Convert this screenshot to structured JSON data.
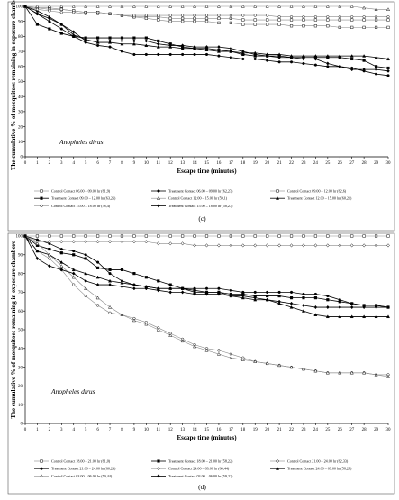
{
  "chart_data": [
    {
      "type": "line",
      "caption": "(c)",
      "annotation": "Anopheles dirus",
      "xlabel": "Escape time (minutes)",
      "ylabel": "The cumulative % of mosquitoes remaining in exposure chambers",
      "xlim": [
        0,
        30
      ],
      "ylim": [
        0,
        100
      ],
      "x_ticks": [
        0,
        1,
        2,
        3,
        4,
        5,
        6,
        7,
        8,
        9,
        10,
        11,
        12,
        13,
        14,
        15,
        16,
        17,
        18,
        19,
        20,
        21,
        22,
        23,
        24,
        25,
        26,
        27,
        28,
        29,
        30
      ],
      "y_ticks": [
        0,
        10,
        20,
        30,
        40,
        50,
        60,
        70,
        80,
        90,
        100
      ],
      "grid": false,
      "legend_position": "bottom",
      "series": [
        {
          "name": "Control Contact 06.00 – 09.00 hr (61,9)",
          "style": "control",
          "marker": "square",
          "values": [
            100,
            99,
            99,
            98,
            97,
            96,
            96,
            95,
            94,
            93,
            93,
            93,
            92,
            92,
            92,
            92,
            92,
            92,
            91,
            91,
            91,
            91,
            91,
            91,
            91,
            91,
            91,
            91,
            91,
            91,
            91
          ]
        },
        {
          "name": "Treatment Contact 06.00 – 09.00 hr (62,27)",
          "style": "treatment",
          "marker": "circle",
          "values": [
            100,
            95,
            90,
            85,
            80,
            76,
            74,
            73,
            70,
            68,
            68,
            68,
            68,
            68,
            68,
            68,
            67,
            66,
            65,
            65,
            64,
            63,
            63,
            62,
            61,
            60,
            60,
            59,
            57,
            55,
            54
          ]
        },
        {
          "name": "Control Contact 09.00 – 12.00 hr (62,6)",
          "style": "control",
          "marker": "square",
          "values": [
            100,
            99,
            98,
            98,
            97,
            96,
            96,
            95,
            94,
            93,
            92,
            91,
            90,
            90,
            90,
            90,
            89,
            89,
            88,
            88,
            88,
            88,
            87,
            87,
            87,
            87,
            86,
            86,
            86,
            86,
            86
          ]
        },
        {
          "name": "Treatment Contact 09.00 – 12.00 hr (63,26)",
          "style": "treatment",
          "marker": "square",
          "values": [
            100,
            88,
            85,
            82,
            80,
            79,
            79,
            79,
            79,
            79,
            79,
            77,
            75,
            73,
            72,
            72,
            71,
            70,
            68,
            67,
            67,
            67,
            66,
            66,
            66,
            66,
            66,
            65,
            64,
            60,
            59
          ]
        },
        {
          "name": "Control Contact 12.00 – 15.00 hr (59,1)",
          "style": "control",
          "marker": "triangle",
          "values": [
            100,
            100,
            100,
            100,
            100,
            100,
            100,
            100,
            100,
            100,
            100,
            100,
            100,
            100,
            100,
            100,
            100,
            100,
            100,
            100,
            100,
            100,
            100,
            100,
            100,
            100,
            100,
            100,
            99,
            98,
            98
          ]
        },
        {
          "name": "Treatment Contact 12.00 – 15.00 hr (60,21)",
          "style": "treatment",
          "marker": "triangle",
          "values": [
            100,
            97,
            93,
            88,
            81,
            78,
            76,
            76,
            75,
            75,
            74,
            73,
            73,
            72,
            72,
            71,
            70,
            70,
            69,
            69,
            68,
            68,
            67,
            67,
            67,
            67,
            67,
            67,
            67,
            66,
            65
          ]
        },
        {
          "name": "Control Contact 15.00 – 18.00 hr (58,4)",
          "style": "control",
          "marker": "circle",
          "values": [
            100,
            98,
            97,
            96,
            96,
            95,
            95,
            95,
            94,
            94,
            94,
            94,
            94,
            94,
            94,
            94,
            94,
            94,
            94,
            94,
            94,
            93,
            93,
            93,
            93,
            93,
            93,
            93,
            93,
            93,
            93
          ]
        },
        {
          "name": "Treatment Contact 15.00 – 18.00 hr (58,27)",
          "style": "treatment",
          "marker": "diamond",
          "values": [
            100,
            95,
            92,
            88,
            83,
            77,
            77,
            77,
            77,
            77,
            77,
            75,
            74,
            74,
            73,
            73,
            73,
            72,
            70,
            68,
            67,
            66,
            66,
            65,
            65,
            62,
            60,
            58,
            58,
            58,
            57
          ]
        }
      ]
    },
    {
      "type": "line",
      "caption": "(d)",
      "annotation": "Anopheles dirus",
      "xlabel": "Escape time (minutes)",
      "ylabel": "The cumulative % of mosquitoes remaining in exposure chambers",
      "xlim": [
        0,
        30
      ],
      "ylim": [
        0,
        100
      ],
      "x_ticks": [
        0,
        1,
        2,
        3,
        4,
        5,
        6,
        7,
        8,
        9,
        10,
        11,
        12,
        13,
        14,
        15,
        16,
        17,
        18,
        19,
        20,
        21,
        22,
        23,
        24,
        25,
        26,
        27,
        28,
        29,
        30
      ],
      "y_ticks": [
        0,
        10,
        20,
        30,
        40,
        50,
        60,
        70,
        80,
        90,
        100
      ],
      "grid": false,
      "legend_position": "bottom",
      "series": [
        {
          "name": "Control Contact 18.00 – 21.00 hr (61,0)",
          "style": "control",
          "marker": "square",
          "values": [
            100,
            100,
            100,
            100,
            100,
            100,
            100,
            100,
            100,
            100,
            100,
            100,
            100,
            100,
            100,
            100,
            100,
            100,
            100,
            100,
            100,
            100,
            100,
            100,
            100,
            100,
            100,
            100,
            100,
            100,
            100
          ]
        },
        {
          "name": "Treatment Contact 18.00 – 21.00 hr (58,22)",
          "style": "treatment",
          "marker": "square",
          "values": [
            100,
            95,
            93,
            91,
            90,
            88,
            83,
            82,
            82,
            80,
            78,
            76,
            74,
            72,
            71,
            70,
            70,
            69,
            69,
            68,
            68,
            68,
            67,
            67,
            67,
            66,
            65,
            64,
            63,
            63,
            62
          ]
        },
        {
          "name": "Control Contact 21.00 – 24.00 hr (62,33)",
          "style": "control",
          "marker": "circle",
          "values": [
            100,
            92,
            88,
            82,
            74,
            68,
            63,
            59,
            58,
            56,
            54,
            51,
            48,
            45,
            42,
            40,
            39,
            37,
            35,
            33,
            32,
            31,
            30,
            29,
            28,
            27,
            27,
            27,
            27,
            26,
            26
          ]
        },
        {
          "name": "Treatment Contact 21.00 – 24.00 hr (60,23)",
          "style": "treatment",
          "marker": "circle",
          "values": [
            100,
            98,
            96,
            93,
            92,
            90,
            86,
            80,
            76,
            74,
            73,
            72,
            72,
            72,
            72,
            72,
            72,
            71,
            70,
            70,
            70,
            70,
            70,
            69,
            69,
            68,
            66,
            64,
            63,
            63,
            62
          ]
        },
        {
          "name": "Control Contact 24.00 – 03.00 hr (60,44)",
          "style": "control",
          "marker": "diamond",
          "values": [
            100,
            97,
            97,
            97,
            97,
            97,
            97,
            97,
            97,
            97,
            97,
            96,
            96,
            96,
            95,
            95,
            95,
            95,
            95,
            95,
            95,
            95,
            95,
            95,
            95,
            95,
            95,
            95,
            95,
            95,
            95
          ]
        },
        {
          "name": "Treatment Contact 24.00 – 03.00 hr (58,25)",
          "style": "treatment",
          "marker": "triangle",
          "values": [
            100,
            92,
            90,
            86,
            82,
            80,
            78,
            76,
            75,
            74,
            73,
            72,
            72,
            72,
            70,
            70,
            70,
            68,
            67,
            66,
            66,
            64,
            62,
            60,
            58,
            57,
            57,
            57,
            57,
            57,
            57
          ]
        },
        {
          "name": "Control Contact 03.00 – 06.00 hr (59,44)",
          "style": "control",
          "marker": "triangle",
          "values": [
            100,
            96,
            90,
            84,
            78,
            72,
            67,
            62,
            58,
            55,
            53,
            50,
            47,
            44,
            41,
            39,
            37,
            35,
            34,
            33,
            32,
            31,
            30,
            29,
            28,
            27,
            27,
            27,
            27,
            26,
            25
          ]
        },
        {
          "name": "Treatment Contact 03.00 – 06.00 hr (59,22)",
          "style": "treatment",
          "marker": "diamond",
          "values": [
            100,
            88,
            84,
            82,
            80,
            76,
            74,
            74,
            73,
            72,
            72,
            71,
            70,
            70,
            69,
            69,
            69,
            68,
            68,
            67,
            66,
            65,
            64,
            63,
            62,
            62,
            62,
            62,
            62,
            62,
            62
          ]
        }
      ]
    }
  ]
}
